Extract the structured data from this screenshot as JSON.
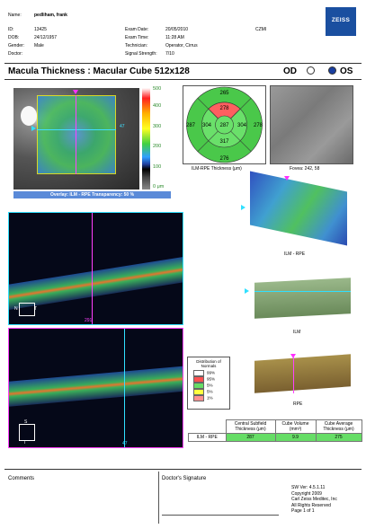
{
  "brand": "ZEISS",
  "patient": {
    "name_label": "Name:",
    "name": "pedliham, frank",
    "id_label": "ID:",
    "id": "13425",
    "dob_label": "DOB:",
    "dob": "24/12/1957",
    "gender_label": "Gender:",
    "gender": "Male",
    "doctor_label": "Doctor:",
    "doctor": ""
  },
  "exam": {
    "date_label": "Exam Date:",
    "date": "20/05/2010",
    "time_label": "Exam Time:",
    "time": "11:28 AM",
    "tech_label": "Technician:",
    "tech": "Operator, Cirrus",
    "signal_label": "Signal Strength:",
    "signal": "7/10",
    "site": "CZMI"
  },
  "title": "Macula Thickness : Macular Cube 512x128",
  "eye": {
    "od": "OD",
    "os": "OS",
    "selected": "OS"
  },
  "overlay": "Overlay: ILM - RPE   Transparency: 50 %",
  "scale": {
    "ticks": [
      "500",
      "400",
      "300",
      "200",
      "100",
      "0 μm"
    ]
  },
  "fundus_marker": "47",
  "etdrs": {
    "label": "ILM-RPE Thickness (μm)",
    "center": "287",
    "inner": {
      "top": "278",
      "left": "304",
      "right": "304",
      "bottom": "317"
    },
    "outer": {
      "top": "265",
      "left": "287",
      "right": "278",
      "bottom": "276"
    }
  },
  "fovea": {
    "label": "Fovea: 242, 58"
  },
  "surfaces": {
    "top": "ILM - RPE",
    "mid": "ILM",
    "bot": "RPE"
  },
  "bscan1": {
    "marker": "291",
    "n": "N",
    "t": "T"
  },
  "bscan2": {
    "marker": "47",
    "s": "S",
    "i": "I"
  },
  "distribution": {
    "title": "Distribution of Normals",
    "items": [
      {
        "label": "99%",
        "color": "#ffffff"
      },
      {
        "label": "95%",
        "color": "#ff5050"
      },
      {
        "label": "5%",
        "color": "#ffff40"
      },
      {
        "label": "1%",
        "color": "#ff9090"
      }
    ],
    "green_label": "5%"
  },
  "table": {
    "h1": "Central Subfield Thickness (μm)",
    "h2": "Cube Volume (mm³)",
    "h3": "Cube Average Thickness (μm)",
    "row_label": "ILM - RPE",
    "v1": "287",
    "v2": "9.9",
    "v3": "275"
  },
  "footer": {
    "comments": "Comments",
    "signature": "Doctor's Signature",
    "sw": "SW Ver: 4.5.1.11",
    "copy": "Copyright 2009",
    "company": "Carl Zeiss Meditec, Inc",
    "rights": "All Rights Reserved",
    "page": "Page 1 of 1"
  }
}
